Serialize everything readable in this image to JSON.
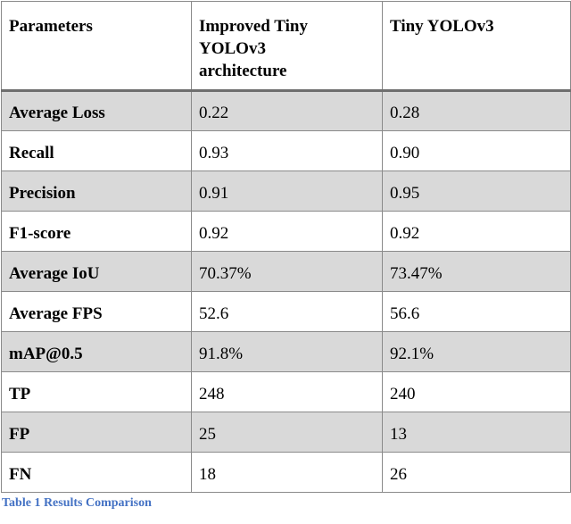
{
  "table": {
    "columns": [
      "Parameters",
      "Improved Tiny YOLOv3 architecture",
      "Tiny YOLOv3"
    ],
    "rows": [
      {
        "shaded": true,
        "cells": [
          "Average Loss",
          "0.22",
          "0.28"
        ]
      },
      {
        "shaded": false,
        "cells": [
          "Recall",
          "0.93",
          "0.90"
        ]
      },
      {
        "shaded": true,
        "cells": [
          "Precision",
          "0.91",
          "0.95"
        ]
      },
      {
        "shaded": false,
        "cells": [
          "F1-score",
          "0.92",
          "0.92"
        ]
      },
      {
        "shaded": true,
        "cells": [
          "Average IoU",
          "70.37%",
          "73.47%"
        ]
      },
      {
        "shaded": false,
        "cells": [
          "Average FPS",
          "52.6",
          "56.6"
        ]
      },
      {
        "shaded": true,
        "cells": [
          "mAP@0.5",
          "91.8%",
          "92.1%"
        ]
      },
      {
        "shaded": false,
        "cells": [
          "TP",
          "248",
          "240"
        ]
      },
      {
        "shaded": true,
        "cells": [
          "FP",
          "25",
          "13"
        ]
      },
      {
        "shaded": false,
        "cells": [
          "FN",
          "18",
          "26"
        ]
      }
    ],
    "shade_color": "#d9d9d9",
    "border_color": "#8a8a8a",
    "header_divider_color": "#6e6e6e"
  },
  "caption": {
    "text": "Table 1 Results Comparison",
    "color": "#4472C4"
  }
}
